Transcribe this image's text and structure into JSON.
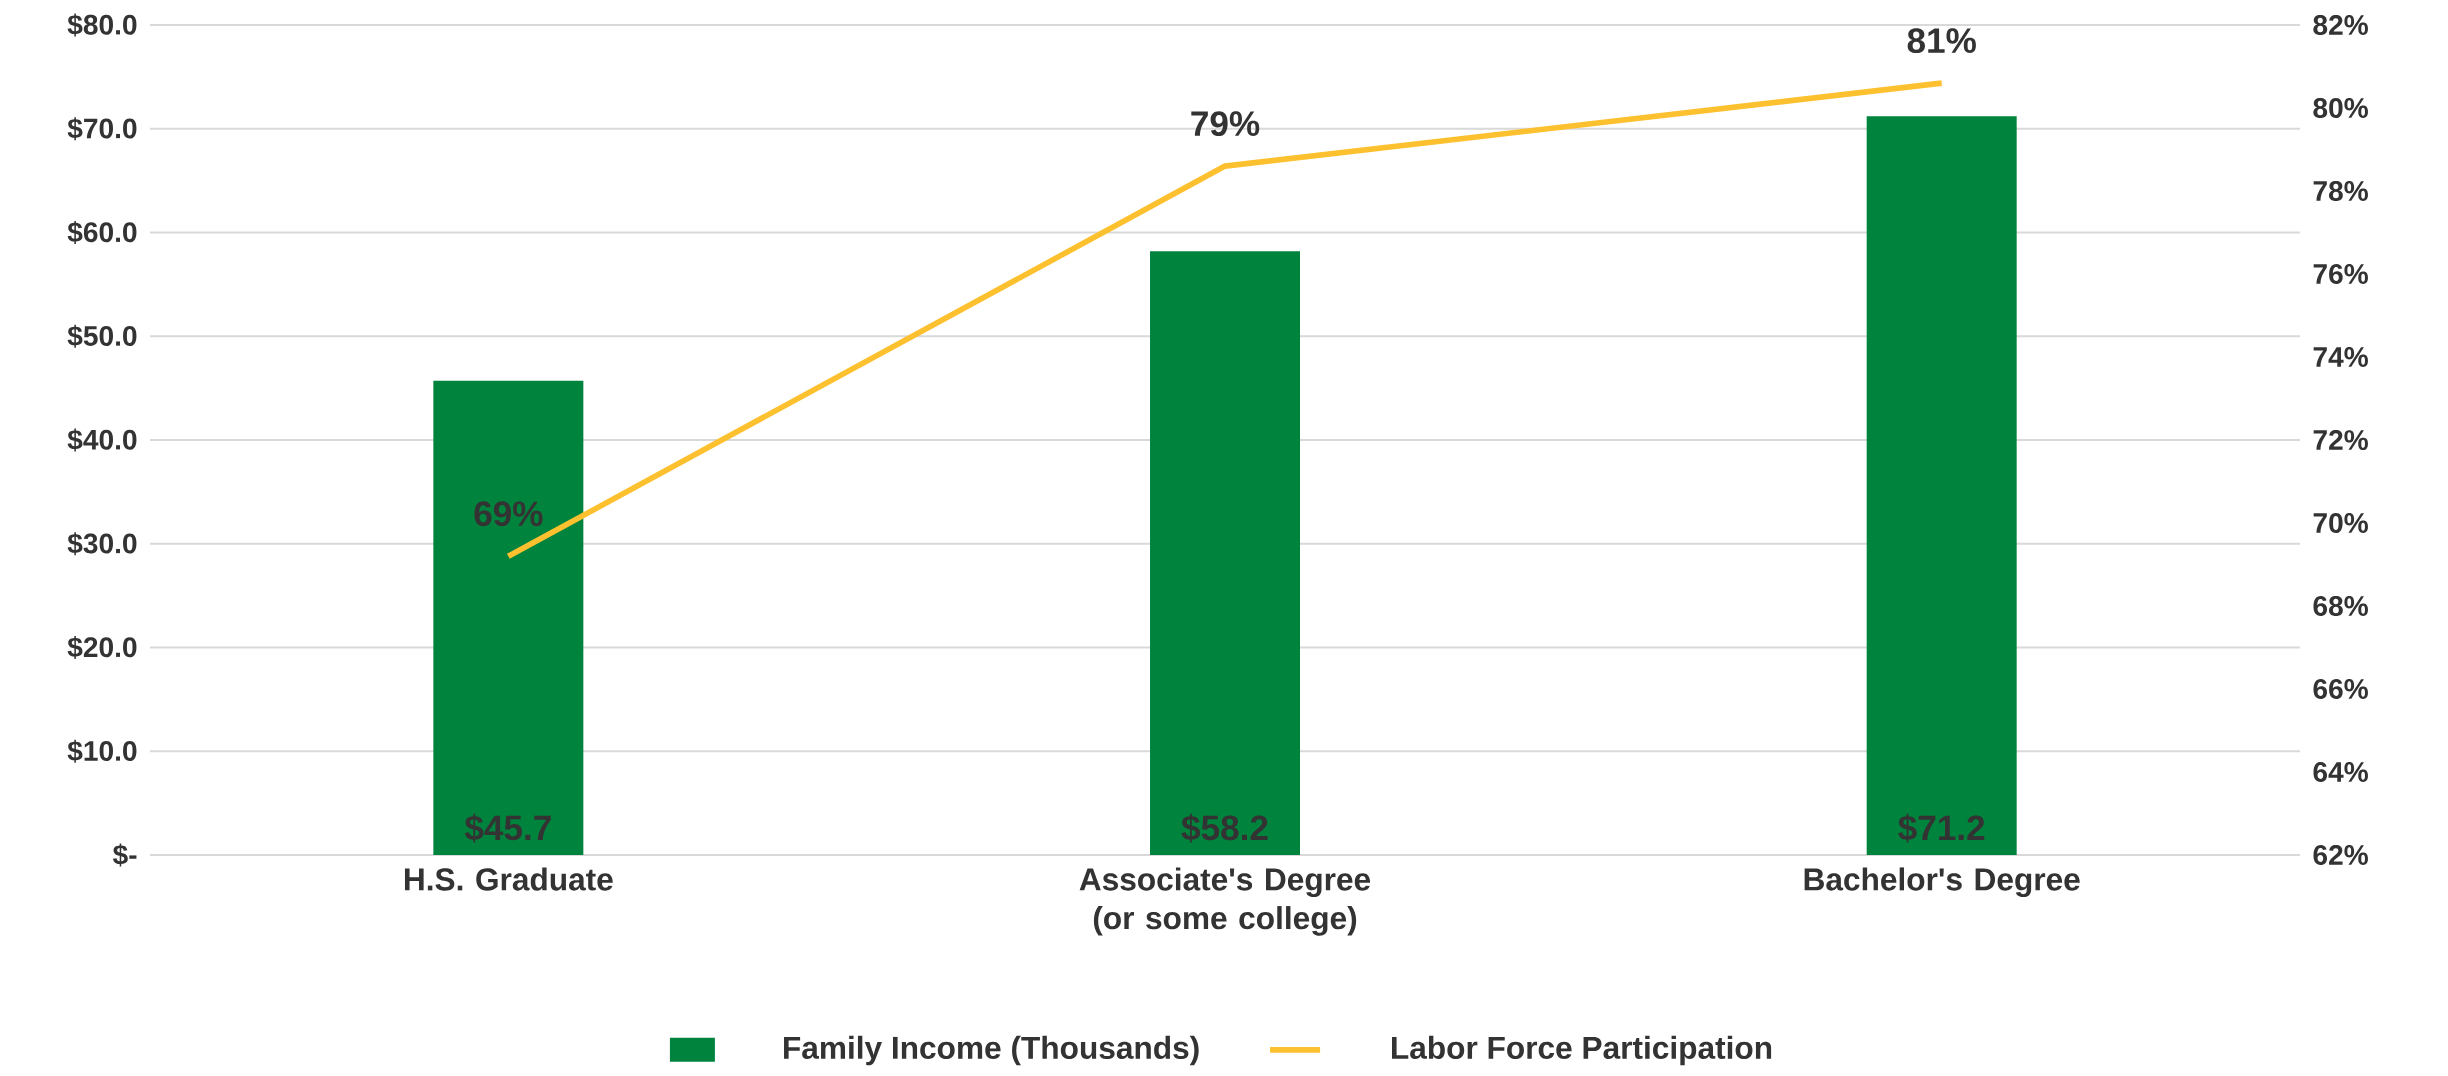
{
  "chart_data": {
    "type": "bar",
    "categories": [
      "H.S. Graduate",
      "Associate's Degree (or some college)",
      "Bachelor's Degree"
    ],
    "series": [
      {
        "name": "Family Income (Thousands)",
        "color": "#00843d",
        "values": [
          45.7,
          58.2,
          71.2
        ],
        "value_labels": [
          "$45.7",
          "$58.2",
          "$71.2"
        ]
      },
      {
        "name": "Labor Force Participation",
        "type": "line",
        "axis": "y2",
        "color": "#fdc02f",
        "values": [
          69.2,
          78.6,
          80.6
        ],
        "value_labels": [
          "69%",
          "79%",
          "81%"
        ]
      }
    ],
    "ylim": [
      0,
      80
    ],
    "yticks": [
      {
        "value": 0,
        "label": "$-"
      },
      {
        "value": 10,
        "label": "$10.0"
      },
      {
        "value": 20,
        "label": "$20.0"
      },
      {
        "value": 30,
        "label": "$30.0"
      },
      {
        "value": 40,
        "label": "$40.0"
      },
      {
        "value": 50,
        "label": "$50.0"
      },
      {
        "value": 60,
        "label": "$60.0"
      },
      {
        "value": 70,
        "label": "$70.0"
      },
      {
        "value": 80,
        "label": "$80.0"
      }
    ],
    "y2lim": [
      62,
      82
    ],
    "y2ticks": [
      {
        "value": 62,
        "label": "62%"
      },
      {
        "value": 64,
        "label": "64%"
      },
      {
        "value": 66,
        "label": "66%"
      },
      {
        "value": 68,
        "label": "68%"
      },
      {
        "value": 70,
        "label": "70%"
      },
      {
        "value": 72,
        "label": "72%"
      },
      {
        "value": 74,
        "label": "74%"
      },
      {
        "value": 76,
        "label": "76%"
      },
      {
        "value": 78,
        "label": "78%"
      },
      {
        "value": 80,
        "label": "80%"
      },
      {
        "value": 82,
        "label": "82%"
      }
    ],
    "grid": "y",
    "legend": "bottom"
  }
}
